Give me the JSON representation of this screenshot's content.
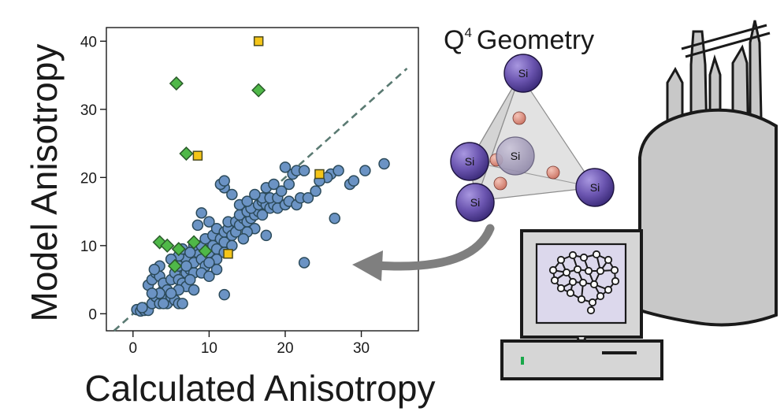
{
  "chart_data": {
    "type": "scatter",
    "title": "",
    "xlabel": "Calculated Anisotropy",
    "ylabel": "Model Anisotropy",
    "xlim": [
      -3.5,
      37.5
    ],
    "ylim": [
      -2.5,
      42
    ],
    "xticks": [
      0,
      10,
      20,
      30
    ],
    "yticks": [
      0,
      10,
      20,
      30,
      40
    ],
    "grid": false,
    "legend": "none",
    "parity_line": {
      "from": [
        -2.5,
        -2.5
      ],
      "to": [
        36,
        36
      ],
      "style": "dashed",
      "color": "#5a7a72"
    },
    "series": [
      {
        "marker": "circle",
        "color": "#6b93c4",
        "edge": "#2b4a5a",
        "points": [
          [
            0.5,
            0.6
          ],
          [
            1,
            0.4
          ],
          [
            1.5,
            0.5
          ],
          [
            2,
            0.5
          ],
          [
            1.2,
            0.9
          ],
          [
            2.5,
            1.5
          ],
          [
            3,
            2.5
          ],
          [
            3.5,
            1.5
          ],
          [
            4,
            2.5
          ],
          [
            4.5,
            1.5
          ],
          [
            4,
            3.5
          ],
          [
            2,
            4.2
          ],
          [
            2.5,
            5
          ],
          [
            3,
            6
          ],
          [
            3.5,
            5.5
          ],
          [
            4,
            4.5
          ],
          [
            4.5,
            3.5
          ],
          [
            5,
            2.5
          ],
          [
            5.5,
            2
          ],
          [
            6,
            1.5
          ],
          [
            6.5,
            1.5
          ],
          [
            5,
            5
          ],
          [
            5.5,
            6
          ],
          [
            6,
            5
          ],
          [
            6.5,
            4.5
          ],
          [
            7,
            4
          ],
          [
            6,
            7
          ],
          [
            7,
            6
          ],
          [
            7.5,
            6.5
          ],
          [
            8,
            6
          ],
          [
            7,
            8
          ],
          [
            8,
            7.5
          ],
          [
            8.5,
            9
          ],
          [
            9,
            8
          ],
          [
            9.5,
            7
          ],
          [
            8,
            10
          ],
          [
            9,
            10
          ],
          [
            10,
            9
          ],
          [
            10.5,
            10
          ],
          [
            11,
            9.5
          ],
          [
            9.5,
            11
          ],
          [
            10.5,
            11.5
          ],
          [
            11.5,
            11
          ],
          [
            12,
            10.5
          ],
          [
            11,
            12.5
          ],
          [
            12,
            12
          ],
          [
            12.5,
            12.5
          ],
          [
            13,
            11.5
          ],
          [
            13.5,
            12
          ],
          [
            12.5,
            13.5
          ],
          [
            13.5,
            13.5
          ],
          [
            14,
            13
          ],
          [
            14.5,
            14
          ],
          [
            15,
            13.5
          ],
          [
            15.5,
            14
          ],
          [
            14,
            14.5
          ],
          [
            15,
            15
          ],
          [
            16,
            14.5
          ],
          [
            16.5,
            15
          ],
          [
            17,
            14.5
          ],
          [
            15.5,
            15.5
          ],
          [
            16.5,
            16
          ],
          [
            17,
            16.5
          ],
          [
            17.5,
            16
          ],
          [
            18,
            15.5
          ],
          [
            18.5,
            16
          ],
          [
            19,
            15.5
          ],
          [
            17,
            17
          ],
          [
            18,
            17
          ],
          [
            19,
            17
          ],
          [
            20,
            16
          ],
          [
            20.5,
            16.5
          ],
          [
            21.5,
            16
          ],
          [
            22,
            17
          ],
          [
            23,
            17
          ],
          [
            24,
            18
          ],
          [
            17.5,
            18.5
          ],
          [
            18.5,
            19
          ],
          [
            19.5,
            18
          ],
          [
            20.5,
            19
          ],
          [
            21,
            20.5
          ],
          [
            21.5,
            21
          ],
          [
            22.5,
            21
          ],
          [
            20,
            21.5
          ],
          [
            26,
            20.5
          ],
          [
            25.5,
            20
          ],
          [
            24.5,
            19.5
          ],
          [
            27,
            21
          ],
          [
            28.5,
            19
          ],
          [
            30.5,
            21
          ],
          [
            33,
            22
          ],
          [
            29,
            19.5
          ],
          [
            26.5,
            14
          ],
          [
            22.5,
            7.5
          ],
          [
            12,
            2.8
          ],
          [
            17.5,
            11.5
          ],
          [
            13,
            17.5
          ],
          [
            12,
            18.5
          ],
          [
            11.5,
            19
          ],
          [
            12,
            19.5
          ],
          [
            9,
            14.8
          ],
          [
            8.5,
            13
          ],
          [
            10,
            13.5
          ],
          [
            14,
            16
          ],
          [
            15,
            16.5
          ],
          [
            16,
            17.5
          ],
          [
            16,
            12.5
          ],
          [
            15,
            12
          ],
          [
            14.5,
            11
          ],
          [
            13,
            10
          ],
          [
            12,
            9
          ],
          [
            11,
            8
          ],
          [
            9,
            6
          ],
          [
            7.5,
            5
          ],
          [
            6,
            3.5
          ],
          [
            5,
            3
          ],
          [
            4,
            1.5
          ],
          [
            3.5,
            3
          ],
          [
            2.5,
            3
          ],
          [
            8,
            3.5
          ],
          [
            10,
            5.5
          ],
          [
            11,
            6.5
          ],
          [
            7,
            7
          ],
          [
            6,
            8.5
          ],
          [
            3.5,
            7
          ],
          [
            2.8,
            6.5
          ],
          [
            5,
            8
          ],
          [
            6.5,
            9.5
          ],
          [
            7.5,
            9
          ],
          [
            10,
            7.5
          ]
        ]
      },
      {
        "marker": "diamond",
        "color": "#4fb848",
        "edge": "#2a5a2a",
        "points": [
          [
            5.7,
            33.8
          ],
          [
            16.5,
            32.8
          ],
          [
            7,
            23.5
          ],
          [
            3.5,
            10.5
          ],
          [
            4.5,
            10
          ],
          [
            6,
            9.5
          ],
          [
            5.5,
            7
          ],
          [
            9.5,
            9.2
          ],
          [
            8,
            10.5
          ]
        ]
      },
      {
        "marker": "square",
        "color": "#f5c518",
        "edge": "#4a4a20",
        "points": [
          [
            16.5,
            40
          ],
          [
            8.5,
            23.2
          ],
          [
            24.5,
            20.5
          ],
          [
            12.5,
            8.8
          ]
        ]
      }
    ]
  },
  "illustration": {
    "geometry_label": "Q",
    "geometry_superscript": "4",
    "geometry_word": "Geometry",
    "atom_label": "Si",
    "colors": {
      "si_atom": "#6b55b0",
      "o_atom": "#e0988a",
      "tetra_fill": "#d6d6d6",
      "arrow": "#808080",
      "magnet": "#c6c6c6",
      "monitor_screen": "#dcd8ec",
      "led": "#1aa84a"
    }
  }
}
